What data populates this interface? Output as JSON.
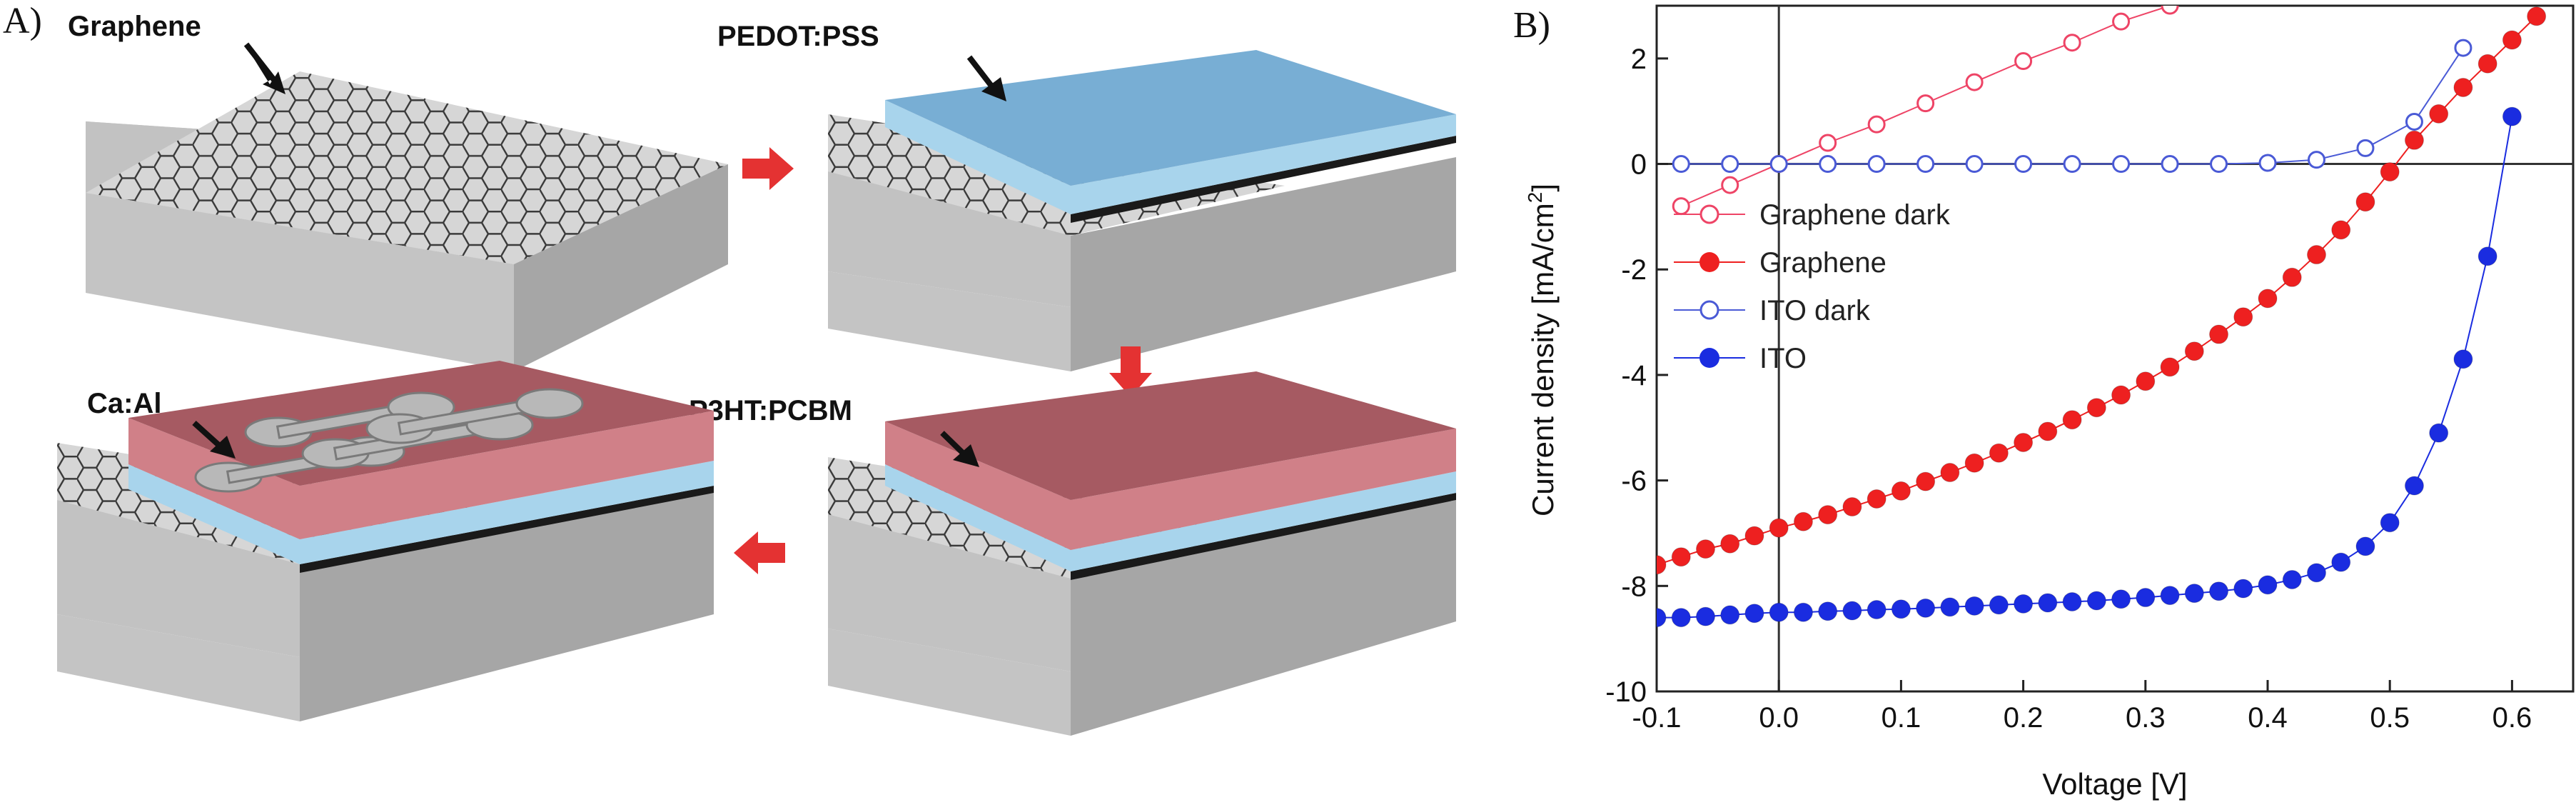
{
  "figure": {
    "panel_a_letter": "A)",
    "panel_b_letter": "B)",
    "labels": {
      "graphene": "Graphene",
      "pedot": "PEDOT:PSS",
      "p3ht": "P3HT:PCBM",
      "caal": "Ca:Al"
    },
    "colors": {
      "substrate_top": "#d6d6d6",
      "substrate_front": "#c2c2c2",
      "substrate_side": "#a8a8a8",
      "hex_line": "#3a3a3a",
      "pedot_top": "#78aed4",
      "pedot_side": "#a8d4ec",
      "p3ht_top": "#a65a62",
      "p3ht_side": "#d08088",
      "electrode": "#b8b8b8",
      "arrow": "#e43232"
    }
  },
  "chart_data": {
    "type": "scatter",
    "xlabel": "Voltage [V]",
    "ylabel": "Current density [mA/cm",
    "ylabel_sup": "2",
    "ylabel_end": "]",
    "xlim": [
      -0.1,
      0.65
    ],
    "ylim": [
      -10,
      3
    ],
    "xticks": [
      "-0.1",
      "0.0",
      "0.1",
      "0.2",
      "0.3",
      "0.4",
      "0.5",
      "0.6"
    ],
    "yticks": [
      "-10",
      "-8",
      "-6",
      "-4",
      "-2",
      "0",
      "2"
    ],
    "legend_position": "center-left",
    "series": [
      {
        "name": "Graphene dark",
        "marker": "open",
        "color": "#ee4466",
        "x": [
          -0.08,
          -0.04,
          0.0,
          0.04,
          0.08,
          0.12,
          0.16,
          0.2,
          0.24,
          0.28,
          0.32,
          0.36
        ],
        "y": [
          -0.8,
          -0.4,
          0.0,
          0.4,
          0.75,
          1.15,
          1.55,
          1.95,
          2.3,
          2.7,
          3.0,
          3.3
        ]
      },
      {
        "name": "Graphene",
        "marker": "filled",
        "color": "#ee2020",
        "x": [
          -0.1,
          -0.08,
          -0.06,
          -0.04,
          -0.02,
          0.0,
          0.02,
          0.04,
          0.06,
          0.08,
          0.1,
          0.12,
          0.14,
          0.16,
          0.18,
          0.2,
          0.22,
          0.24,
          0.26,
          0.28,
          0.3,
          0.32,
          0.34,
          0.36,
          0.38,
          0.4,
          0.42,
          0.44,
          0.46,
          0.48,
          0.5,
          0.52,
          0.54,
          0.56,
          0.58,
          0.6,
          0.62
        ],
        "y": [
          -7.6,
          -7.45,
          -7.3,
          -7.2,
          -7.05,
          -6.9,
          -6.78,
          -6.65,
          -6.5,
          -6.35,
          -6.2,
          -6.02,
          -5.85,
          -5.67,
          -5.48,
          -5.28,
          -5.07,
          -4.85,
          -4.62,
          -4.38,
          -4.12,
          -3.85,
          -3.55,
          -3.23,
          -2.9,
          -2.55,
          -2.15,
          -1.72,
          -1.25,
          -0.72,
          -0.15,
          0.45,
          0.95,
          1.45,
          1.9,
          2.35,
          2.8
        ]
      },
      {
        "name": "ITO dark",
        "marker": "open",
        "color": "#4a5ad6",
        "x": [
          -0.08,
          -0.04,
          0.0,
          0.04,
          0.08,
          0.12,
          0.16,
          0.2,
          0.24,
          0.28,
          0.32,
          0.36,
          0.4,
          0.44,
          0.48,
          0.52,
          0.56
        ],
        "y": [
          0.0,
          0.0,
          0.0,
          0.0,
          0.0,
          0.0,
          0.0,
          0.0,
          0.0,
          0.0,
          0.0,
          0.0,
          0.02,
          0.08,
          0.3,
          0.8,
          2.2
        ]
      },
      {
        "name": "ITO",
        "marker": "filled",
        "color": "#1a2ce0",
        "x": [
          -0.1,
          -0.08,
          -0.06,
          -0.04,
          -0.02,
          0.0,
          0.02,
          0.04,
          0.06,
          0.08,
          0.1,
          0.12,
          0.14,
          0.16,
          0.18,
          0.2,
          0.22,
          0.24,
          0.26,
          0.28,
          0.3,
          0.32,
          0.34,
          0.36,
          0.38,
          0.4,
          0.42,
          0.44,
          0.46,
          0.48,
          0.5,
          0.52,
          0.54,
          0.56,
          0.58,
          0.6
        ],
        "y": [
          -8.6,
          -8.6,
          -8.58,
          -8.55,
          -8.52,
          -8.5,
          -8.5,
          -8.48,
          -8.47,
          -8.45,
          -8.44,
          -8.42,
          -8.4,
          -8.38,
          -8.36,
          -8.34,
          -8.32,
          -8.3,
          -8.28,
          -8.25,
          -8.22,
          -8.18,
          -8.14,
          -8.1,
          -8.05,
          -7.98,
          -7.88,
          -7.75,
          -7.55,
          -7.25,
          -6.8,
          -6.1,
          -5.1,
          -3.7,
          -1.75,
          0.9
        ]
      }
    ]
  }
}
